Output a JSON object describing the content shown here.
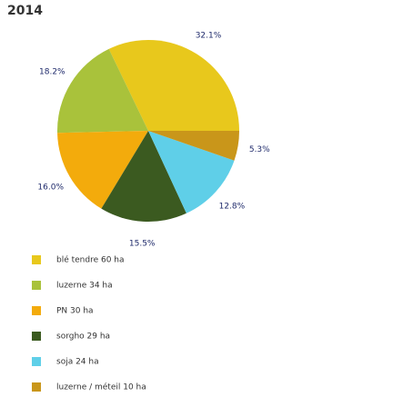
{
  "chart_data": {
    "type": "pie",
    "title": "2014",
    "categories": [
      "blé tendre 60 ha",
      "luzerne 34 ha",
      "PN 30 ha",
      "sorgho 29 ha",
      "soja 24 ha",
      "luzerne / méteil 10 ha"
    ],
    "values": [
      32.1,
      18.2,
      16.0,
      15.5,
      12.8,
      5.3
    ],
    "value_labels": [
      "32.1%",
      "18.2%",
      "16.0%",
      "15.5%",
      "12.8%",
      "5.3%"
    ],
    "colors": [
      "#e8c81c",
      "#a9c23b",
      "#f3ab0c",
      "#3b5a20",
      "#5fcfe8",
      "#c9961a"
    ]
  }
}
